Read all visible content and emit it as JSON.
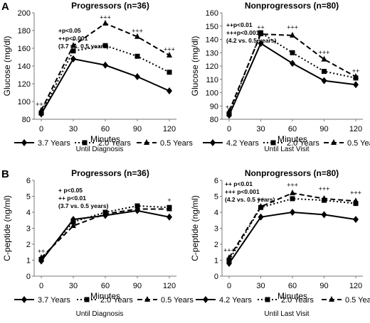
{
  "chart_data": [
    {
      "type": "line",
      "panel_letter": "A",
      "title": "Progressors (n=36)",
      "xlabel": "Minutes",
      "ylabel": "Glucose (mg/dl)",
      "x": [
        0,
        30,
        60,
        90,
        120
      ],
      "ylim": [
        80,
        200
      ],
      "yticks": [
        80,
        100,
        120,
        140,
        160,
        180,
        200
      ],
      "grid": false,
      "annotation": [
        "+p<0.05",
        "++p<0.001",
        "(3.7 vs. 0.5 years)"
      ],
      "point_marks": [
        {
          "x": 0,
          "value": 92,
          "label": "+++"
        },
        {
          "x": 30,
          "value": 165,
          "label": "+"
        },
        {
          "x": 60,
          "value": 190,
          "label": "+++"
        },
        {
          "x": 90,
          "value": 175,
          "label": "+++"
        },
        {
          "x": 120,
          "value": 154,
          "label": "+++"
        }
      ],
      "series": [
        {
          "name": "3.7 Years",
          "marker": "diamond",
          "dash": "solid",
          "values": [
            86,
            148,
            141,
            128,
            112
          ]
        },
        {
          "name": "2.0 Years",
          "marker": "square",
          "dash": "dot",
          "values": [
            87,
            157,
            163,
            151,
            133
          ]
        },
        {
          "name": "0.5 Years",
          "marker": "triangle",
          "dash": "dash",
          "values": [
            90,
            163,
            188,
            173,
            152
          ]
        }
      ],
      "legend_caption": "Until Diagnosis",
      "legend_position": "bottom"
    },
    {
      "type": "line",
      "panel_letter": "",
      "title": "Nonprogressors (n=80)",
      "xlabel": "Minutes",
      "ylabel": "Glucose (mg/dl)",
      "x": [
        0,
        30,
        60,
        90,
        120
      ],
      "ylim": [
        80,
        160
      ],
      "yticks": [
        80,
        90,
        100,
        110,
        120,
        130,
        140,
        150,
        160
      ],
      "grid": false,
      "annotation": [
        "++p<0.01",
        "+++p<0.001",
        "(4.2 vs. 0.5 years)"
      ],
      "point_marks": [
        {
          "x": 0,
          "value": 86,
          "label": "++"
        },
        {
          "x": 30,
          "value": 146,
          "label": "++"
        },
        {
          "x": 60,
          "value": 146,
          "label": "+++"
        },
        {
          "x": 90,
          "value": 127,
          "label": "+++"
        },
        {
          "x": 120,
          "value": 113,
          "label": "++"
        }
      ],
      "series": [
        {
          "name": "4.2 Years",
          "marker": "diamond",
          "dash": "solid",
          "values": [
            83,
            137,
            122,
            109,
            106
          ]
        },
        {
          "name": "2.0 Years",
          "marker": "square",
          "dash": "dot",
          "values": [
            84,
            145,
            130,
            116,
            111
          ]
        },
        {
          "name": "0.5 Years",
          "marker": "triangle",
          "dash": "dash",
          "values": [
            86,
            144,
            143,
            125,
            112
          ]
        }
      ],
      "legend_caption": "Until Last Visit",
      "legend_position": "bottom"
    },
    {
      "type": "line",
      "panel_letter": "B",
      "title": "Progressors (n=36)",
      "xlabel": "Minutes",
      "ylabel": "C-peptide (ng/ml)",
      "x": [
        0,
        30,
        60,
        90,
        120
      ],
      "ylim": [
        0,
        6
      ],
      "yticks": [
        0,
        1,
        2,
        3,
        4,
        5,
        6
      ],
      "grid": false,
      "annotation": [
        "+ p<0.05",
        "++ p<0.01",
        "(3.7 vs. 0.5 years)"
      ],
      "point_marks": [
        {
          "x": 0,
          "value": 1.3,
          "label": "++"
        },
        {
          "x": 120,
          "value": 4.5,
          "label": "+"
        }
      ],
      "series": [
        {
          "name": "3.7 Years",
          "marker": "diamond",
          "dash": "solid",
          "values": [
            0.95,
            3.55,
            3.8,
            4.1,
            3.7
          ]
        },
        {
          "name": "2.0 Years",
          "marker": "square",
          "dash": "dot",
          "values": [
            1.05,
            3.4,
            4.0,
            4.4,
            4.3
          ]
        },
        {
          "name": "0.5 Years",
          "marker": "triangle",
          "dash": "dash",
          "values": [
            1.15,
            3.15,
            3.9,
            4.2,
            4.2
          ]
        }
      ],
      "legend_caption": "Until Diagnosis",
      "legend_position": "bottom"
    },
    {
      "type": "line",
      "panel_letter": "",
      "title": "Nonprogressors (n=80)",
      "xlabel": "Minutes",
      "ylabel": "C-peptide (ng/ml)",
      "x": [
        0,
        30,
        60,
        90,
        120
      ],
      "ylim": [
        0,
        6
      ],
      "yticks": [
        0,
        1,
        2,
        3,
        4,
        5,
        6
      ],
      "grid": false,
      "annotation": [
        "++ p<0.01",
        "+++ p<0.001",
        "(4.2 vs. 0.5 years)"
      ],
      "point_marks": [
        {
          "x": 0,
          "value": 1.35,
          "label": "+++"
        },
        {
          "x": 30,
          "value": 4.55,
          "label": "++"
        },
        {
          "x": 60,
          "value": 5.45,
          "label": "+++"
        },
        {
          "x": 90,
          "value": 5.2,
          "label": "+++"
        },
        {
          "x": 120,
          "value": 4.95,
          "label": "+++"
        }
      ],
      "series": [
        {
          "name": "4.2 Years",
          "marker": "diamond",
          "dash": "solid",
          "values": [
            0.8,
            3.7,
            4.0,
            3.85,
            3.55
          ]
        },
        {
          "name": "2.0 Years",
          "marker": "square",
          "dash": "dot",
          "values": [
            1.0,
            4.3,
            4.85,
            4.75,
            4.55
          ]
        },
        {
          "name": "0.5 Years",
          "marker": "triangle",
          "dash": "dash",
          "values": [
            1.15,
            4.35,
            5.2,
            4.85,
            4.7
          ]
        }
      ],
      "legend_caption": "Until Last Visit",
      "legend_position": "bottom"
    }
  ]
}
